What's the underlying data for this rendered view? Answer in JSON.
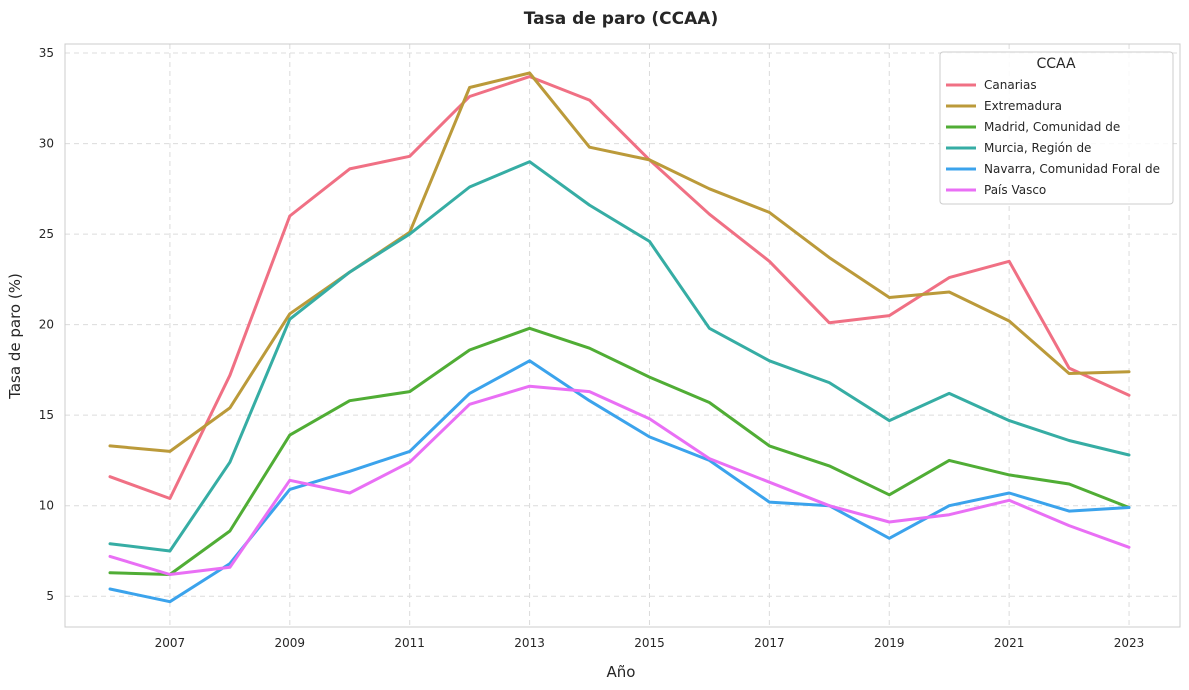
{
  "chart_data": {
    "type": "line",
    "title": "Tasa de paro (CCAA)",
    "xlabel": "Año",
    "ylabel": "Tasa de paro (%)",
    "x": [
      2006,
      2007,
      2008,
      2009,
      2010,
      2011,
      2012,
      2013,
      2014,
      2015,
      2016,
      2017,
      2018,
      2019,
      2020,
      2021,
      2022,
      2023
    ],
    "xticks": [
      2007,
      2009,
      2011,
      2013,
      2015,
      2017,
      2019,
      2021,
      2023
    ],
    "yticks": [
      5,
      10,
      15,
      20,
      25,
      30,
      35
    ],
    "xlim": [
      2005.25,
      2023.85
    ],
    "ylim": [
      3.3,
      35.5
    ],
    "grid": true,
    "legend": {
      "title": "CCAA",
      "position": "top-right"
    },
    "series": [
      {
        "name": "Canarias",
        "color": "#f07084",
        "values": [
          11.6,
          10.4,
          17.2,
          26.0,
          28.6,
          29.3,
          32.6,
          33.7,
          32.4,
          29.1,
          26.1,
          23.5,
          20.1,
          20.5,
          22.6,
          23.5,
          17.6,
          16.1
        ]
      },
      {
        "name": "Extremadura",
        "color": "#bb9a3a",
        "values": [
          13.3,
          13.0,
          15.4,
          20.6,
          22.9,
          25.1,
          33.1,
          33.9,
          29.8,
          29.1,
          27.5,
          26.2,
          23.7,
          21.5,
          21.8,
          20.2,
          17.3,
          17.4
        ]
      },
      {
        "name": "Madrid, Comunidad de",
        "color": "#50ad35",
        "values": [
          6.3,
          6.2,
          8.6,
          13.9,
          15.8,
          16.3,
          18.6,
          19.8,
          18.7,
          17.1,
          15.7,
          13.3,
          12.2,
          10.6,
          12.5,
          11.7,
          11.2,
          9.9
        ]
      },
      {
        "name": "Murcia, Región de",
        "color": "#36ada4",
        "values": [
          7.9,
          7.5,
          12.4,
          20.3,
          22.9,
          25.0,
          27.6,
          29.0,
          26.6,
          24.6,
          19.8,
          18.0,
          16.8,
          14.7,
          16.2,
          14.7,
          13.6,
          12.8
        ]
      },
      {
        "name": "Navarra, Comunidad Foral de",
        "color": "#3ba3ec",
        "values": [
          5.4,
          4.7,
          6.8,
          10.9,
          11.9,
          13.0,
          16.2,
          18.0,
          15.8,
          13.8,
          12.5,
          10.2,
          10.0,
          8.2,
          10.0,
          10.7,
          9.7,
          9.9
        ]
      },
      {
        "name": "País Vasco",
        "color": "#e96ff5",
        "values": [
          7.2,
          6.2,
          6.6,
          11.4,
          10.7,
          12.4,
          15.6,
          16.6,
          16.3,
          14.8,
          12.6,
          11.3,
          10.0,
          9.1,
          9.5,
          10.3,
          8.9,
          7.7
        ]
      }
    ]
  }
}
